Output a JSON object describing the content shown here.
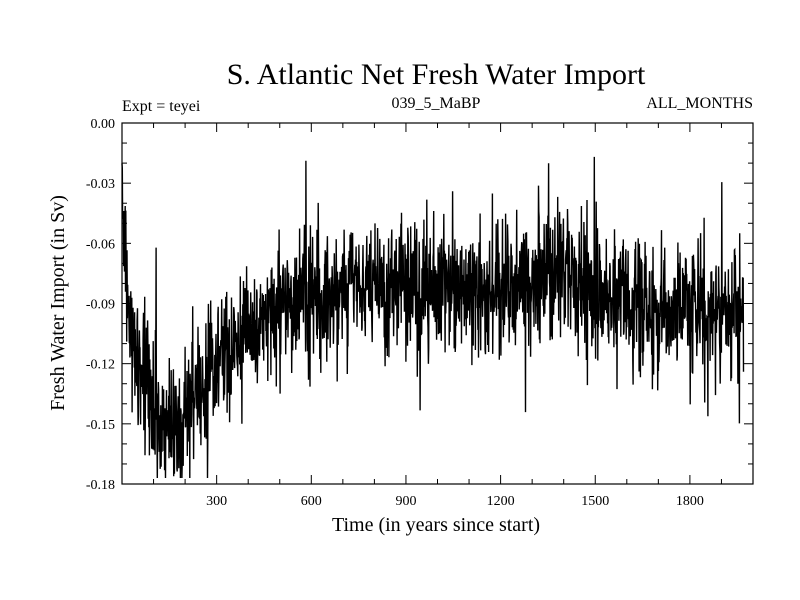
{
  "chart_data": {
    "type": "line",
    "title": "S. Atlantic Net Fresh Water Import",
    "subtitle_left": "Expt = teyei",
    "subtitle_center": "039_5_MaBP",
    "subtitle_right": "ALL_MONTHS",
    "xlabel": "Time (in years since start)",
    "ylabel": "Fresh Water Import (in Sv)",
    "xlim": [
      0,
      2000
    ],
    "ylim": [
      -0.18,
      0.0
    ],
    "xticks": [
      300,
      600,
      900,
      1200,
      1500,
      1800
    ],
    "xtick_labels": [
      "300",
      "600",
      "900",
      "1200",
      "1500",
      "1800"
    ],
    "yticks": [
      0.0,
      -0.03,
      -0.06,
      -0.09,
      -0.12,
      -0.15,
      -0.18
    ],
    "ytick_labels": [
      "0.00",
      "-0.03",
      "-0.06",
      "-0.09",
      "-0.12",
      "-0.15",
      "-0.18"
    ],
    "grid": false,
    "line_color": "#000000",
    "series": [
      {
        "name": "Fresh Water Import",
        "x_start": 0,
        "x_step": 10,
        "values": [
          -0.038,
          -0.064,
          -0.095,
          -0.103,
          -0.112,
          -0.118,
          -0.122,
          -0.128,
          -0.133,
          -0.137,
          -0.14,
          -0.145,
          -0.148,
          -0.15,
          -0.151,
          -0.152,
          -0.152,
          -0.15,
          -0.149,
          -0.147,
          -0.145,
          -0.142,
          -0.14,
          -0.137,
          -0.134,
          -0.132,
          -0.13,
          -0.127,
          -0.125,
          -0.123,
          -0.121,
          -0.119,
          -0.117,
          -0.115,
          -0.113,
          -0.111,
          -0.11,
          -0.108,
          -0.106,
          -0.105,
          -0.104,
          -0.102,
          -0.101,
          -0.1,
          -0.099,
          -0.098,
          -0.097,
          -0.096,
          -0.095,
          -0.094,
          -0.093,
          -0.092,
          -0.091,
          -0.09,
          -0.089,
          -0.088,
          -0.088,
          -0.087,
          -0.086,
          -0.086,
          -0.085,
          -0.085,
          -0.084,
          -0.084,
          -0.083,
          -0.083,
          -0.083,
          -0.082,
          -0.082,
          -0.082,
          -0.082,
          -0.082,
          -0.081,
          -0.081,
          -0.081,
          -0.081,
          -0.081,
          -0.081,
          -0.081,
          -0.081,
          -0.081,
          -0.081,
          -0.081,
          -0.081,
          -0.081,
          -0.081,
          -0.081,
          -0.081,
          -0.081,
          -0.081,
          -0.081,
          -0.081,
          -0.081,
          -0.082,
          -0.082,
          -0.082,
          -0.082,
          -0.082,
          -0.082,
          -0.082,
          -0.082,
          -0.083,
          -0.083,
          -0.083,
          -0.083,
          -0.083,
          -0.084,
          -0.084,
          -0.084,
          -0.084,
          -0.084,
          -0.084,
          -0.084,
          -0.084,
          -0.084,
          -0.084,
          -0.084,
          -0.083,
          -0.083,
          -0.083,
          -0.082,
          -0.082,
          -0.082,
          -0.081,
          -0.081,
          -0.08,
          -0.08,
          -0.079,
          -0.079,
          -0.078,
          -0.078,
          -0.077,
          -0.077,
          -0.077,
          -0.076,
          -0.076,
          -0.076,
          -0.075,
          -0.075,
          -0.075,
          -0.075,
          -0.075,
          -0.075,
          -0.076,
          -0.076,
          -0.077,
          -0.077,
          -0.078,
          -0.079,
          -0.08,
          -0.081,
          -0.082,
          -0.083,
          -0.084,
          -0.085,
          -0.086,
          -0.087,
          -0.088,
          -0.089,
          -0.09,
          -0.09,
          -0.091,
          -0.091,
          -0.092,
          -0.092,
          -0.093,
          -0.093,
          -0.093,
          -0.094,
          -0.094,
          -0.094,
          -0.094,
          -0.094,
          -0.094,
          -0.094,
          -0.094,
          -0.094,
          -0.094,
          -0.094,
          -0.094,
          -0.094,
          -0.094,
          -0.094,
          -0.094,
          -0.094,
          -0.094,
          -0.094,
          -0.094,
          -0.094,
          -0.094,
          -0.094,
          -0.094,
          -0.094,
          -0.094,
          -0.094,
          -0.094,
          -0.094,
          -0.094
        ],
        "sampling_note": "Underlying signal is a trend sampled every 10 years; the plotted trace adds high-frequency year-to-year variability around this trend"
      }
    ]
  }
}
